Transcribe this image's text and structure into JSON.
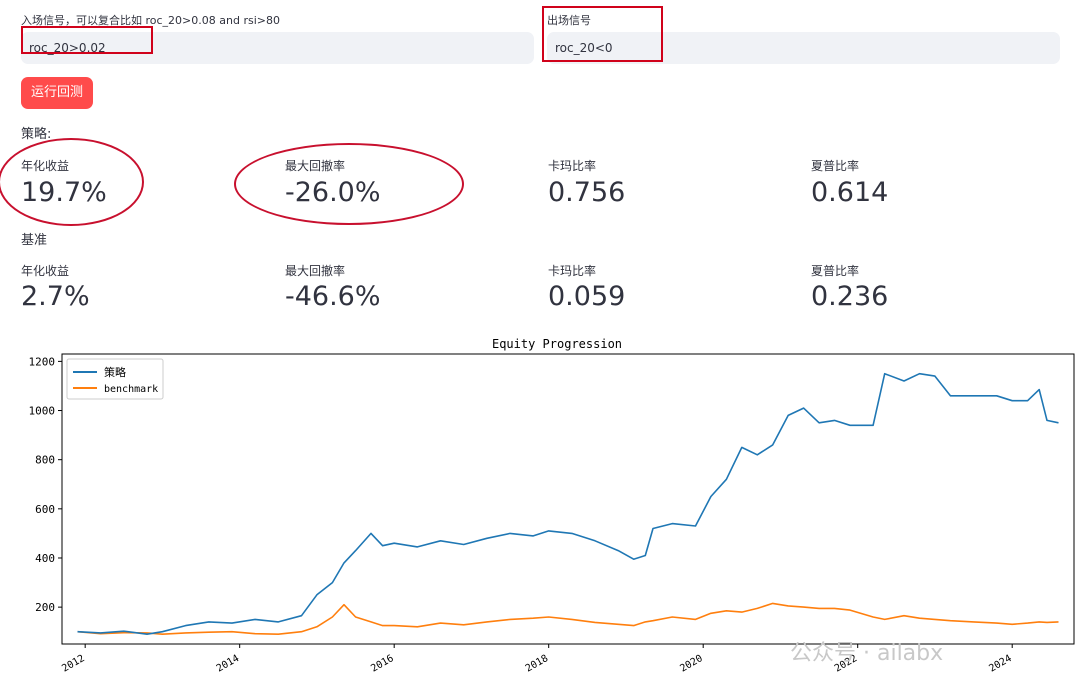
{
  "entry": {
    "label": "入场信号，可以复合比如 roc_20>0.08 and rsi>80",
    "value": "roc_20>0.02"
  },
  "exit": {
    "label": "出场信号",
    "value": "roc_20<0"
  },
  "run_button": {
    "label": "运行回测"
  },
  "strategy": {
    "title": "策略:",
    "metrics": [
      {
        "label": "年化收益",
        "value": "19.7%"
      },
      {
        "label": "最大回撤率",
        "value": "-26.0%"
      },
      {
        "label": "卡玛比率",
        "value": "0.756"
      },
      {
        "label": "夏普比率",
        "value": "0.614"
      }
    ]
  },
  "benchmark": {
    "title": "基准",
    "metrics": [
      {
        "label": "年化收益",
        "value": "2.7%"
      },
      {
        "label": "最大回撤率",
        "value": "-46.6%"
      },
      {
        "label": "卡玛比率",
        "value": "0.059"
      },
      {
        "label": "夏普比率",
        "value": "0.236"
      }
    ]
  },
  "watermark": "公众号 · ailabx",
  "chart_data": {
    "type": "line",
    "title": "Equity Progression",
    "xlabel": "",
    "ylabel": "",
    "xlim": [
      2011.7,
      2024.8
    ],
    "ylim": [
      50,
      1230
    ],
    "xticks": [
      2012,
      2014,
      2016,
      2018,
      2020,
      2022,
      2024
    ],
    "yticks": [
      200,
      400,
      600,
      800,
      1000,
      1200
    ],
    "legend": "top-left",
    "series": [
      {
        "name": "策略",
        "color": "#1f77b4",
        "x": [
          2011.9,
          2012.2,
          2012.5,
          2012.8,
          2013.0,
          2013.3,
          2013.6,
          2013.9,
          2014.2,
          2014.5,
          2014.8,
          2015.0,
          2015.2,
          2015.35,
          2015.5,
          2015.7,
          2015.85,
          2016.0,
          2016.3,
          2016.6,
          2016.9,
          2017.2,
          2017.5,
          2017.8,
          2018.0,
          2018.3,
          2018.6,
          2018.9,
          2019.1,
          2019.25,
          2019.35,
          2019.6,
          2019.9,
          2020.1,
          2020.3,
          2020.5,
          2020.7,
          2020.9,
          2021.1,
          2021.3,
          2021.5,
          2021.7,
          2021.9,
          2022.2,
          2022.35,
          2022.6,
          2022.8,
          2023.0,
          2023.2,
          2023.5,
          2023.8,
          2024.0,
          2024.2,
          2024.35,
          2024.45,
          2024.6
        ],
        "y": [
          100,
          95,
          102,
          90,
          100,
          125,
          140,
          135,
          150,
          140,
          165,
          250,
          300,
          380,
          430,
          500,
          450,
          460,
          445,
          470,
          455,
          480,
          500,
          490,
          510,
          500,
          470,
          430,
          395,
          410,
          520,
          540,
          530,
          650,
          720,
          850,
          820,
          860,
          980,
          1010,
          950,
          960,
          940,
          940,
          1150,
          1120,
          1150,
          1140,
          1060,
          1060,
          1060,
          1040,
          1040,
          1085,
          960,
          950
        ]
      },
      {
        "name": "benchmark",
        "color": "#ff7f0e",
        "x": [
          2011.9,
          2012.2,
          2012.5,
          2012.8,
          2013.0,
          2013.3,
          2013.6,
          2013.9,
          2014.2,
          2014.5,
          2014.8,
          2015.0,
          2015.2,
          2015.35,
          2015.5,
          2015.7,
          2015.85,
          2016.0,
          2016.3,
          2016.6,
          2016.9,
          2017.2,
          2017.5,
          2017.8,
          2018.0,
          2018.3,
          2018.6,
          2018.9,
          2019.1,
          2019.25,
          2019.35,
          2019.6,
          2019.9,
          2020.1,
          2020.3,
          2020.5,
          2020.7,
          2020.9,
          2021.1,
          2021.3,
          2021.5,
          2021.7,
          2021.9,
          2022.2,
          2022.35,
          2022.6,
          2022.8,
          2023.0,
          2023.2,
          2023.5,
          2023.8,
          2024.0,
          2024.2,
          2024.35,
          2024.45,
          2024.6
        ],
        "y": [
          100,
          92,
          96,
          95,
          90,
          95,
          98,
          100,
          92,
          90,
          100,
          120,
          160,
          210,
          160,
          140,
          125,
          125,
          120,
          135,
          128,
          140,
          150,
          155,
          160,
          150,
          138,
          130,
          125,
          140,
          145,
          160,
          150,
          175,
          185,
          180,
          195,
          215,
          205,
          200,
          195,
          195,
          188,
          160,
          150,
          165,
          155,
          150,
          145,
          140,
          135,
          130,
          135,
          140,
          138,
          140
        ]
      }
    ]
  }
}
